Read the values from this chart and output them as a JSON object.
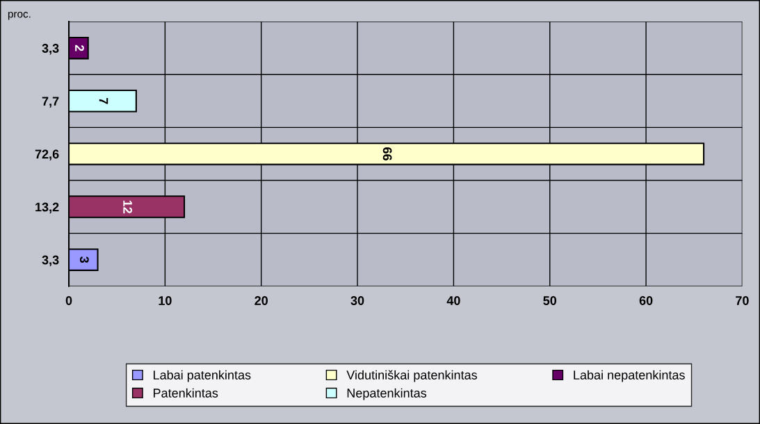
{
  "chart_data": {
    "type": "bar",
    "orientation": "horizontal",
    "ylabel": "proc.",
    "categories": [
      "3,3",
      "7,7",
      "72,6",
      "13,2",
      "3,3"
    ],
    "series": [
      {
        "name": "Labai patenkintas",
        "color": "#9999ff",
        "values": [
          null,
          null,
          null,
          null,
          3
        ]
      },
      {
        "name": "Patenkintas",
        "color": "#993366",
        "values": [
          null,
          null,
          null,
          12,
          null
        ]
      },
      {
        "name": "Vidutiniškai patenkintas",
        "color": "#ffffcc",
        "values": [
          null,
          null,
          66,
          null,
          null
        ]
      },
      {
        "name": "Nepatenkintas",
        "color": "#ccffff",
        "values": [
          null,
          7,
          null,
          null,
          null
        ]
      },
      {
        "name": "Labai nepatenkintas",
        "color": "#660066",
        "values": [
          2,
          null,
          null,
          null,
          null
        ]
      }
    ],
    "xlim": [
      0,
      70
    ],
    "xticks": [
      0,
      10,
      20,
      30,
      40,
      50,
      60,
      70
    ],
    "grid": true,
    "legend": "bottom",
    "data_labels": true
  }
}
